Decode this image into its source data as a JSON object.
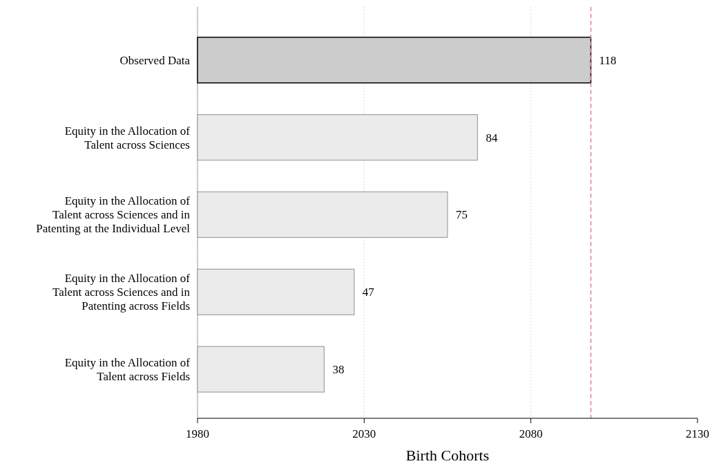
{
  "chart_data": {
    "type": "bar",
    "orientation": "horizontal",
    "xlabel": "Birth Cohorts",
    "categories": [
      "Observed Data",
      "Equity in the Allocation of\nTalent across Sciences",
      "Equity in the Allocation of\nTalent across Sciences and in\nPatenting at the Individual Level",
      "Equity in the Allocation of\nTalent across Sciences and in\nPatenting across Fields",
      "Equity in the Allocation of\nTalent across Fields"
    ],
    "values": [
      118,
      84,
      75,
      47,
      38
    ],
    "base": [
      1980,
      1980,
      1980,
      1980,
      1980
    ],
    "colors": [
      "#cccccc",
      "#ebebeb",
      "#ebebeb",
      "#ebebeb",
      "#ebebeb"
    ],
    "data_labels": true,
    "xlim": [
      1980,
      2130
    ],
    "xticks": [
      1980,
      2030,
      2080,
      2130
    ],
    "grid": "x",
    "ref_lines": [
      {
        "axis": "x",
        "value": 2098,
        "color": "#d4829e",
        "line_style": "dashed"
      }
    ]
  }
}
